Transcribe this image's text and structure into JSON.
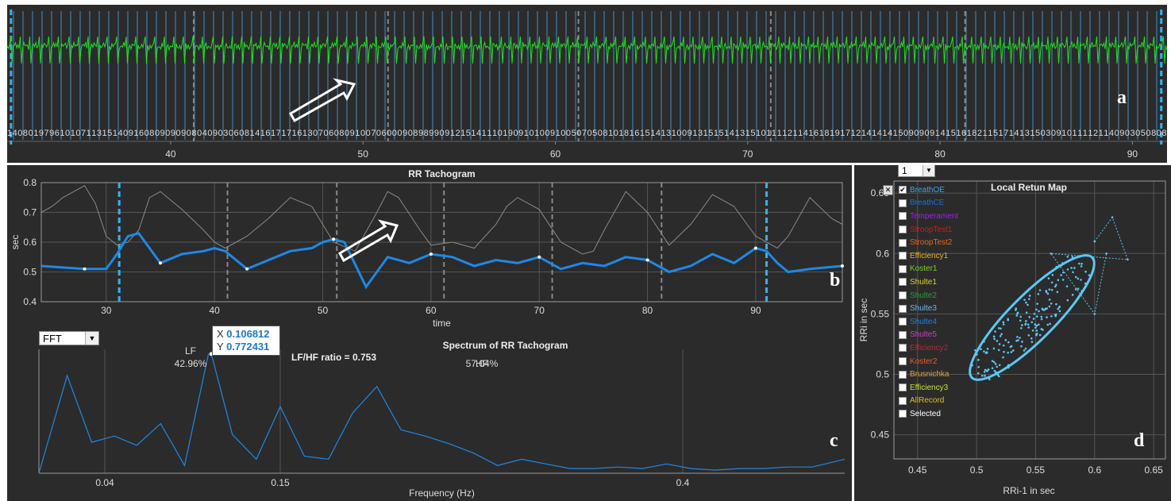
{
  "colors": {
    "background": "#2b2b2b",
    "ecg": "#22e022",
    "beat_marker": "#4a9fe0",
    "dashed_marker": "#2fb4f0",
    "grey_dashed": "#888888",
    "rr_line": "#1e88e5",
    "raw_line": "#8a8a8a",
    "spectrum": "#1e88e5",
    "ellipse": "#5bc8f5",
    "points": "#5bc8f5"
  },
  "letters": {
    "a": "a",
    "b": "b",
    "c": "c",
    "d": "d"
  },
  "chart_data": [
    {
      "type": "line",
      "name": "ecg-strip",
      "xlim": [
        31.5,
        91.8
      ],
      "xticks": [
        40,
        50,
        60,
        70,
        80,
        90
      ],
      "beats_rr_ms": "1408019796101071131514091608090909080409030608141617171613070608091007060009089899091215141110190910100910050705081018161514131009131515141315101111211416181917121414141509090914151618211517141315030910111121140903050808",
      "blue_dashed_x": [
        31.7,
        91.5
      ],
      "grey_dashed_x": [
        41.2,
        51.3,
        61.2,
        71.2,
        81.3
      ]
    },
    {
      "type": "line",
      "name": "rr-tachogram",
      "title": "RR Tachogram",
      "xlabel": "time",
      "ylabel": "sec",
      "xlim": [
        24,
        98
      ],
      "ylim": [
        0.4,
        0.8
      ],
      "xticks": [
        30,
        40,
        50,
        60,
        70,
        80,
        90
      ],
      "yticks": [
        0.4,
        0.5,
        0.6,
        0.7,
        0.8
      ],
      "series": [
        {
          "x": [
            24,
            26,
            28,
            30,
            31,
            32,
            33,
            35,
            37,
            39,
            40,
            41,
            43,
            45,
            47,
            49,
            50,
            51,
            52,
            54,
            56,
            58,
            60,
            62,
            64,
            66,
            68,
            70,
            72,
            74,
            76,
            78,
            80,
            82,
            84,
            86,
            88,
            90,
            91,
            92,
            93,
            95,
            98
          ],
          "values": [
            0.52,
            0.515,
            0.51,
            0.51,
            0.56,
            0.62,
            0.63,
            0.53,
            0.56,
            0.57,
            0.58,
            0.57,
            0.51,
            0.54,
            0.57,
            0.58,
            0.6,
            0.61,
            0.6,
            0.45,
            0.55,
            0.53,
            0.56,
            0.55,
            0.52,
            0.54,
            0.53,
            0.55,
            0.51,
            0.53,
            0.52,
            0.55,
            0.54,
            0.5,
            0.52,
            0.56,
            0.53,
            0.58,
            0.57,
            0.53,
            0.5,
            0.51,
            0.52
          ]
        },
        {
          "x": [
            24,
            25,
            26,
            28,
            29,
            30,
            31,
            32,
            33,
            34,
            35,
            37,
            39,
            40,
            41,
            42,
            43,
            45,
            47,
            49,
            51,
            53,
            55,
            56,
            57,
            59,
            60,
            62,
            64,
            66,
            67,
            68,
            70,
            72,
            74,
            75,
            76,
            78,
            80,
            82,
            84,
            86,
            88,
            90,
            92,
            93,
            95,
            97,
            98
          ],
          "values": [
            0.7,
            0.72,
            0.75,
            0.79,
            0.73,
            0.62,
            0.59,
            0.6,
            0.64,
            0.75,
            0.77,
            0.71,
            0.64,
            0.6,
            0.58,
            0.6,
            0.62,
            0.68,
            0.75,
            0.72,
            0.6,
            0.57,
            0.7,
            0.77,
            0.75,
            0.64,
            0.59,
            0.6,
            0.58,
            0.66,
            0.72,
            0.75,
            0.71,
            0.6,
            0.56,
            0.57,
            0.64,
            0.77,
            0.7,
            0.59,
            0.66,
            0.76,
            0.72,
            0.62,
            0.58,
            0.62,
            0.75,
            0.68,
            0.66
          ]
        }
      ],
      "blue_dashed_x": [
        31.2,
        91.0
      ],
      "grey_dashed_x": [
        41.2,
        51.3,
        61.2,
        71.2,
        81.3
      ]
    },
    {
      "type": "line",
      "name": "spectrum",
      "title": "Spectrum of RR Tachogram",
      "xlabel": "Frequency (Hz)",
      "xticks": [
        0.04,
        0.15,
        0.4
      ],
      "x": [
        0.005,
        0.02,
        0.033,
        0.046,
        0.06,
        0.075,
        0.09,
        0.105,
        0.1068,
        0.12,
        0.135,
        0.15,
        0.165,
        0.18,
        0.195,
        0.21,
        0.225,
        0.24,
        0.255,
        0.27,
        0.285,
        0.3,
        0.315,
        0.33,
        0.345,
        0.36,
        0.375,
        0.39,
        0.405,
        0.42,
        0.435,
        0.45,
        0.465,
        0.48,
        0.5
      ],
      "values": [
        0.0,
        0.63,
        0.2,
        0.24,
        0.18,
        0.32,
        0.05,
        0.77,
        0.77,
        0.25,
        0.09,
        0.43,
        0.11,
        0.09,
        0.39,
        0.56,
        0.28,
        0.24,
        0.19,
        0.13,
        0.05,
        0.09,
        0.06,
        0.03,
        0.03,
        0.04,
        0.03,
        0.06,
        0.03,
        0.02,
        0.03,
        0.03,
        0.04,
        0.04,
        0.09
      ],
      "annotations": {
        "lf_label": "LF",
        "lf_pct": "42.96%",
        "hf_label": "HF",
        "hf_pct": "57.04%",
        "ratio": "LF/HF ratio = 0.753"
      },
      "datatip": {
        "x_key": "X",
        "x_value": "0.106812",
        "y_key": "Y",
        "y_value": "0.772431"
      },
      "method": "FFT"
    },
    {
      "type": "scatter",
      "name": "local-return-map",
      "title": "Local Retun Map",
      "xlabel": "RRi-1 in sec",
      "ylabel": "RRi in sec",
      "xlim": [
        0.43,
        0.66
      ],
      "ylim": [
        0.43,
        0.66
      ],
      "xticks": [
        0.45,
        0.5,
        0.55,
        0.6,
        0.65
      ],
      "yticks": [
        0.45,
        0.5,
        0.55,
        0.6,
        0.65
      ],
      "ellipse": {
        "cx": 0.547,
        "cy": 0.547,
        "major": 0.072,
        "minor": 0.019,
        "angle_deg": 45
      },
      "outliers": [
        [
          0.6,
          0.61
        ],
        [
          0.615,
          0.63
        ],
        [
          0.628,
          0.595
        ],
        [
          0.563,
          0.6
        ],
        [
          0.6,
          0.55
        ],
        [
          0.61,
          0.6
        ]
      ]
    }
  ],
  "return_map": {
    "selector_value": "1",
    "legend": [
      {
        "label": "BreathOE",
        "color": "#3ba4e6",
        "checked": true
      },
      {
        "label": "BreathCE",
        "color": "#1f6fd0",
        "checked": false
      },
      {
        "label": "Temperament",
        "color": "#a020f0",
        "checked": false
      },
      {
        "label": "StroopTest1",
        "color": "#c81e1e",
        "checked": false
      },
      {
        "label": "StroopTest2",
        "color": "#e8641e",
        "checked": false
      },
      {
        "label": "Efficiency1",
        "color": "#e8b21e",
        "checked": false
      },
      {
        "label": "Koster1",
        "color": "#7ad02a",
        "checked": false
      },
      {
        "label": "Shulte1",
        "color": "#d8d02a",
        "checked": false
      },
      {
        "label": "Shulte2",
        "color": "#2a9c3a",
        "checked": false
      },
      {
        "label": "Shulte3",
        "color": "#6ab6f0",
        "checked": false
      },
      {
        "label": "Shulte4",
        "color": "#2a7ce0",
        "checked": false
      },
      {
        "label": "Shulte5",
        "color": "#c040c0",
        "checked": false
      },
      {
        "label": "Efficiency2",
        "color": "#b02a3a",
        "checked": false
      },
      {
        "label": "Koster2",
        "color": "#e06030",
        "checked": false
      },
      {
        "label": "Brusnichka",
        "color": "#e8a030",
        "checked": false
      },
      {
        "label": "Efficiency3",
        "color": "#c8e030",
        "checked": false
      },
      {
        "label": "AllRecord",
        "color": "#d8c020",
        "checked": false
      },
      {
        "label": "Selected",
        "color": "#ffffff",
        "checked": false
      }
    ]
  }
}
